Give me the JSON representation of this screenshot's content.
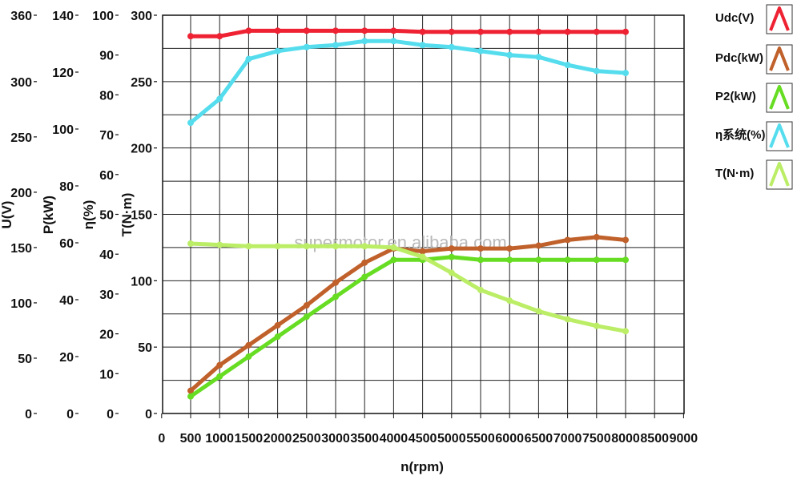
{
  "chart_data": {
    "type": "line",
    "watermark": "supermotor.en.alibaba.com",
    "xlabel": "n(rpm)",
    "xlim": [
      0,
      9000
    ],
    "xticks": [
      0,
      500,
      1000,
      1500,
      2000,
      2500,
      3000,
      3500,
      4000,
      4500,
      5000,
      5500,
      6000,
      6500,
      7000,
      7500,
      8000,
      8500,
      9000
    ],
    "grid": true,
    "legend_position": "right",
    "y_axes": [
      {
        "label": "U(V)",
        "ylim": [
          0,
          360
        ],
        "ticks": [
          0,
          50,
          100,
          150,
          200,
          250,
          300,
          360
        ]
      },
      {
        "label": "P(kW)",
        "ylim": [
          0,
          140
        ],
        "ticks": [
          0,
          20,
          40,
          60,
          80,
          100,
          120,
          140
        ]
      },
      {
        "label": "η(%)",
        "ylim": [
          0,
          100
        ],
        "ticks": [
          0,
          10,
          20,
          30,
          40,
          50,
          60,
          70,
          80,
          90,
          100
        ]
      },
      {
        "label": "T(N·m)",
        "ylim": [
          0,
          300
        ],
        "ticks": [
          0,
          50,
          100,
          150,
          200,
          250,
          300
        ]
      }
    ],
    "x": [
      500,
      1000,
      1500,
      2000,
      2500,
      3000,
      3500,
      4000,
      4500,
      5000,
      5500,
      6000,
      6500,
      7000,
      7500,
      8000
    ],
    "series": [
      {
        "name": "Udc(V)",
        "axis": 0,
        "color": "#ee2233",
        "values": [
          341,
          341,
          346,
          346,
          346,
          346,
          346,
          346,
          345,
          345,
          345,
          345,
          345,
          345,
          345,
          345
        ]
      },
      {
        "name": "Pdc(kW)",
        "axis": 1,
        "color": "#c0602a",
        "values": [
          8,
          17,
          24,
          31,
          38,
          46,
          53,
          58,
          57,
          58,
          58,
          58,
          59,
          61,
          62,
          61
        ]
      },
      {
        "name": "P2(kW)",
        "axis": 1,
        "color": "#66dd22",
        "values": [
          6,
          13,
          20,
          27,
          34,
          41,
          48,
          54,
          54,
          55,
          54,
          54,
          54,
          54,
          54,
          54
        ]
      },
      {
        "name": "η系统(%)",
        "axis": 2,
        "color": "#55ddee",
        "values": [
          73,
          79,
          89,
          91,
          92,
          92.5,
          93.5,
          93.5,
          92.5,
          92,
          91,
          90,
          89.5,
          87.5,
          86,
          85.5
        ]
      },
      {
        "name": "T(N·m)",
        "axis": 3,
        "color": "#bbee66",
        "values": [
          128,
          127,
          126,
          126,
          126,
          126,
          126,
          125,
          118,
          106,
          93,
          85,
          77,
          71,
          66,
          62
        ]
      }
    ]
  }
}
